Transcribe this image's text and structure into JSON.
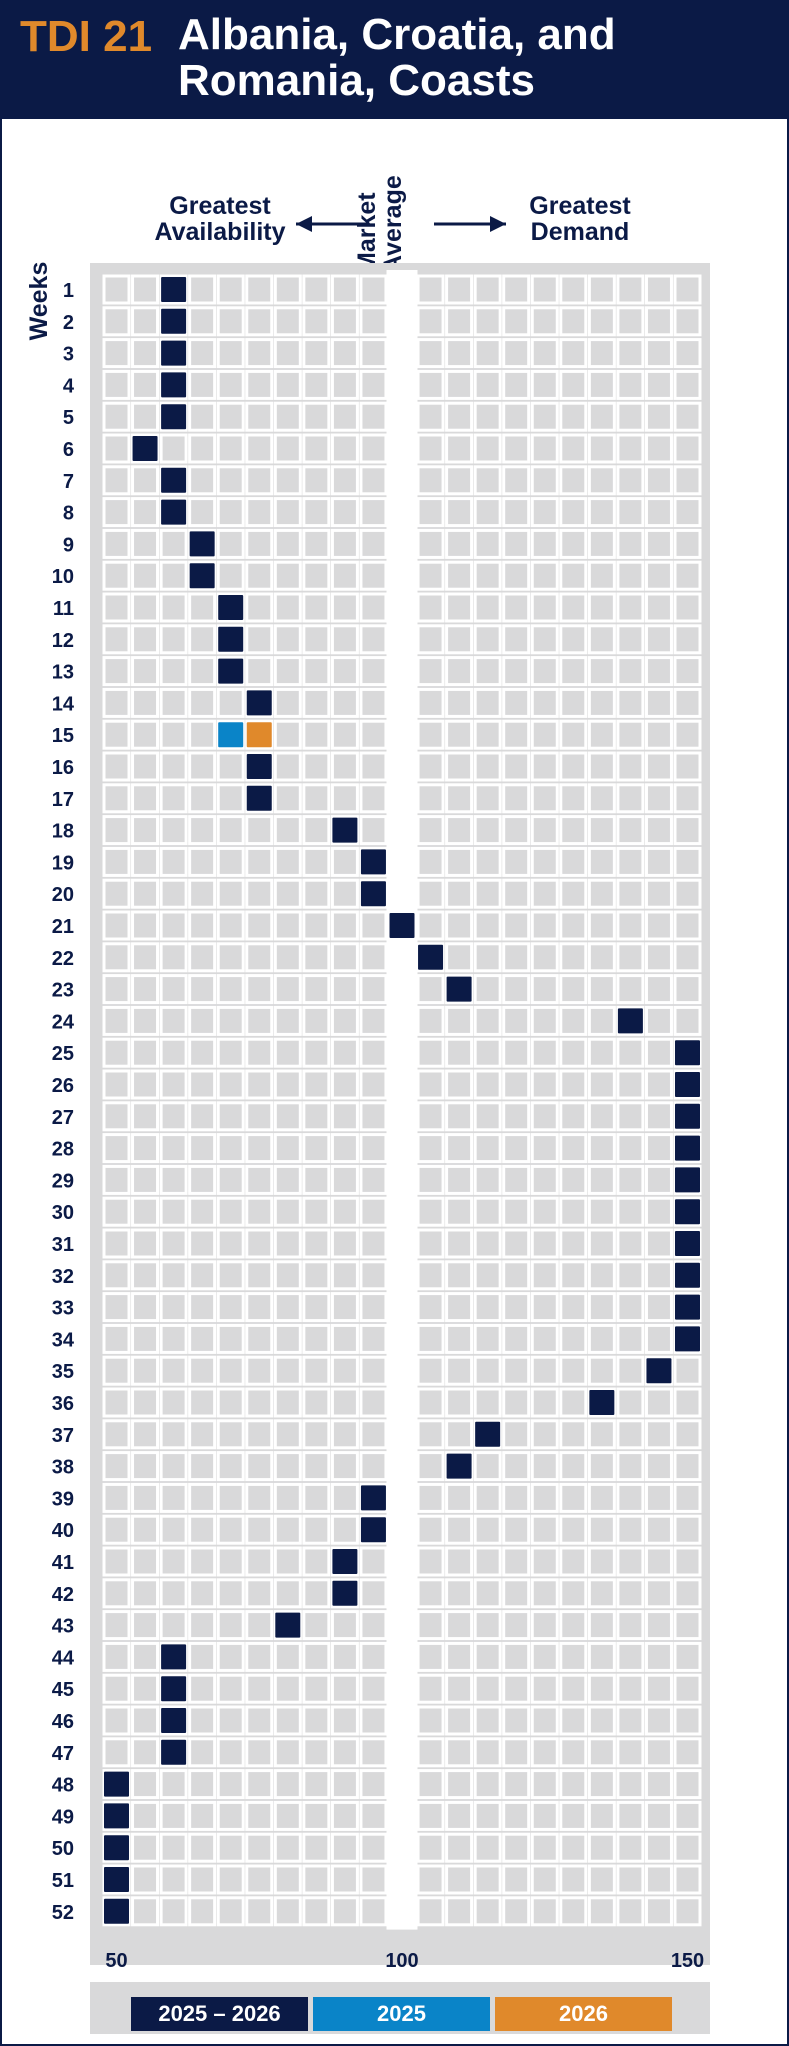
{
  "header": {
    "code": "TDI 21",
    "title_line1": "Albania, Croatia, and",
    "title_line2": "Romania, Coasts"
  },
  "labels": {
    "left_line1": "Greatest",
    "left_line2": "Availability",
    "center_line1": "Market",
    "center_line2": "Average",
    "right_line1": "Greatest",
    "right_line2": "Demand",
    "weeks": "Weeks"
  },
  "colors": {
    "navy": "#0b1a46",
    "blue": "#0a84c8",
    "orange": "#e0892b",
    "cell": "#d9d9da"
  },
  "legend": [
    {
      "label": "2025 – 2026",
      "color": "#0b1a46"
    },
    {
      "label": "2025",
      "color": "#0a84c8"
    },
    {
      "label": "2026",
      "color": "#e0892b"
    }
  ],
  "chart_data": {
    "type": "heatmap",
    "ylabel": "Weeks",
    "xlim": [
      50,
      150
    ],
    "x_ticks": [
      50,
      100,
      150
    ],
    "market_average": 100,
    "series": [
      {
        "name": "2025 – 2026",
        "color": "#0b1a46"
      },
      {
        "name": "2025",
        "color": "#0a84c8"
      },
      {
        "name": "2026",
        "color": "#e0892b"
      }
    ],
    "weeks": [
      1,
      2,
      3,
      4,
      5,
      6,
      7,
      8,
      9,
      10,
      11,
      12,
      13,
      14,
      15,
      16,
      17,
      18,
      19,
      20,
      21,
      22,
      23,
      24,
      25,
      26,
      27,
      28,
      29,
      30,
      31,
      32,
      33,
      34,
      35,
      36,
      37,
      38,
      39,
      40,
      41,
      42,
      43,
      44,
      45,
      46,
      47,
      48,
      49,
      50,
      51,
      52
    ],
    "values": [
      60,
      60,
      60,
      60,
      60,
      55,
      60,
      60,
      65,
      65,
      70,
      70,
      70,
      75,
      null,
      75,
      75,
      90,
      95,
      95,
      100,
      105,
      110,
      140,
      150,
      150,
      150,
      150,
      150,
      150,
      150,
      150,
      150,
      150,
      145,
      135,
      115,
      110,
      95,
      95,
      90,
      90,
      80,
      60,
      60,
      60,
      60,
      50,
      50,
      50,
      50,
      50
    ],
    "split_points": [
      {
        "week": 15,
        "series": "2025",
        "value": 70
      },
      {
        "week": 15,
        "series": "2026",
        "value": 75
      }
    ]
  }
}
